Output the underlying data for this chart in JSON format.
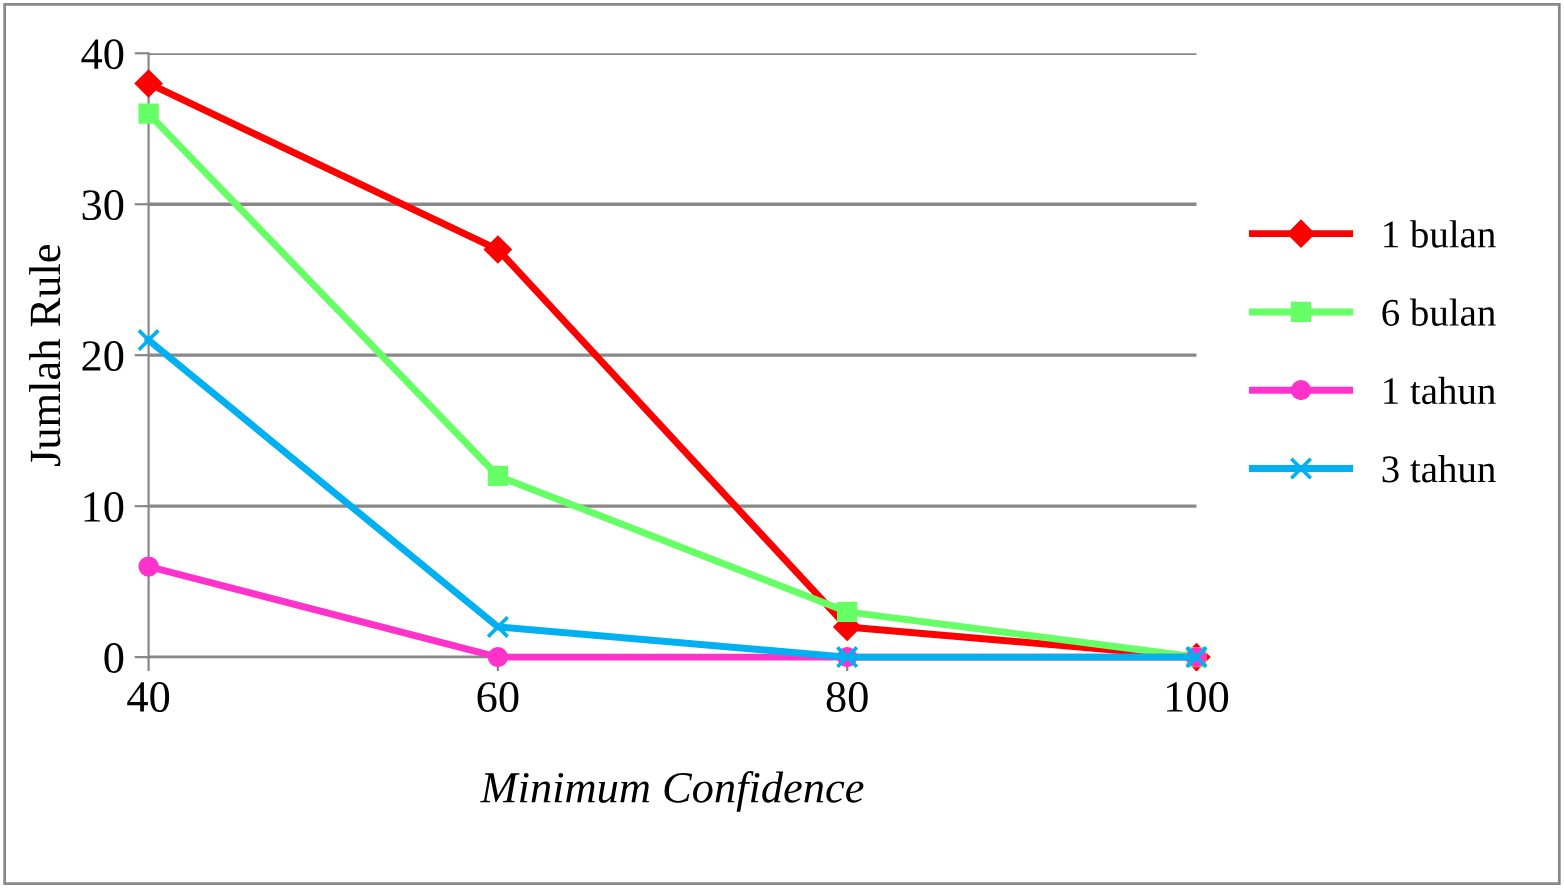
{
  "chart_data": {
    "type": "line",
    "xlabel": "Minimum Confidence",
    "ylabel": "Jumlah Rule",
    "x": [
      40,
      60,
      80,
      100
    ],
    "xlim": [
      40,
      100
    ],
    "xticks": [
      40,
      60,
      80,
      100
    ],
    "ylim": [
      0,
      40
    ],
    "yticks": [
      0,
      10,
      20,
      30,
      40
    ],
    "grid": "y",
    "legend": "right",
    "line_style": "solid",
    "series": [
      {
        "name": "1 bulan",
        "color": "#ff0000",
        "marker": "diamond",
        "values": [
          38,
          27,
          2,
          0
        ]
      },
      {
        "name": "6 bulan",
        "color": "#66ff66",
        "marker": "square",
        "values": [
          36,
          12,
          3,
          0
        ]
      },
      {
        "name": "1 tahun",
        "color": "#ff33cc",
        "marker": "circle",
        "values": [
          6,
          0,
          0,
          0
        ]
      },
      {
        "name": "3 tahun",
        "color": "#00b0f0",
        "marker": "cross",
        "values": [
          21,
          2,
          0,
          0
        ]
      }
    ]
  }
}
